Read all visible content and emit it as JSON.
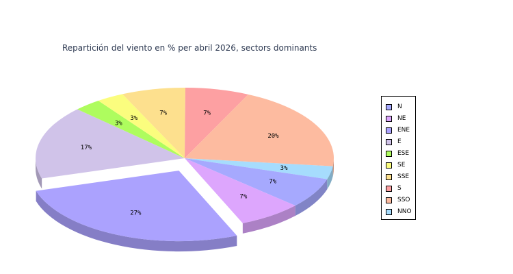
{
  "chart_data": {
    "type": "pie",
    "title": "Repartición del viento en % per abril 2026, sectors dominants",
    "categories": [
      "NNO",
      "N",
      "NE",
      "ENE",
      "E",
      "ESE",
      "SE",
      "SSE",
      "S",
      "SSO"
    ],
    "values": [
      3,
      7,
      7,
      27,
      17,
      3,
      3,
      7,
      7,
      20
    ],
    "labels": [
      "3%",
      "7%",
      "7%",
      "27%",
      "17%",
      "3%",
      "3%",
      "7%",
      "7%",
      "20%"
    ],
    "colors": [
      "#a6dcfd",
      "#a6a9fe",
      "#dda6fd",
      "#aba2fe",
      "#d0c3e9",
      "#aefc5e",
      "#fbfd7e",
      "#fde08e",
      "#fda0a2",
      "#fdbba0"
    ],
    "exploded": [
      "ENE"
    ],
    "legend": {
      "placement": "right",
      "items": [
        {
          "label": "N",
          "color": "#a6a9fe"
        },
        {
          "label": "NE",
          "color": "#dda6fd"
        },
        {
          "label": "ENE",
          "color": "#aba2fe"
        },
        {
          "label": "E",
          "color": "#d0c3e9"
        },
        {
          "label": "ESE",
          "color": "#aefc5e"
        },
        {
          "label": "SE",
          "color": "#fbfd7e"
        },
        {
          "label": "SSE",
          "color": "#fde08e"
        },
        {
          "label": "S",
          "color": "#fda0a2"
        },
        {
          "label": "SSO",
          "color": "#fdbba0"
        },
        {
          "label": "NNO",
          "color": "#a6dcfd"
        }
      ]
    }
  }
}
